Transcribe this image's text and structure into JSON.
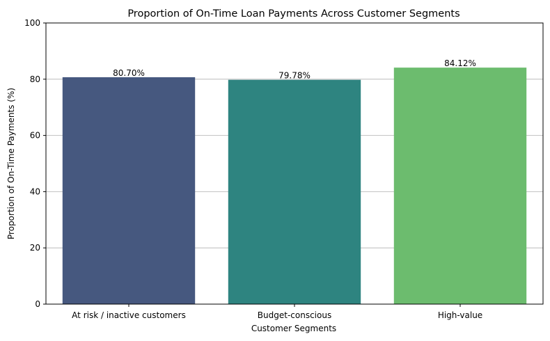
{
  "chart_data": {
    "type": "bar",
    "title": "Proportion of On-Time Loan Payments Across Customer Segments",
    "xlabel": "Customer Segments",
    "ylabel": "Proportion of On-Time Payments (%)",
    "categories": [
      "At risk / inactive customers",
      "Budget-conscious",
      "High-value"
    ],
    "values": [
      80.7,
      79.78,
      84.12
    ],
    "value_labels": [
      "80.70%",
      "79.78%",
      "84.12%"
    ],
    "colors": [
      "#46587f",
      "#2e8480",
      "#6cbc6e"
    ],
    "ylim": [
      0,
      100
    ],
    "yticks": [
      0,
      20,
      40,
      60,
      80,
      100
    ],
    "grid": "y-major",
    "legend": "none"
  }
}
